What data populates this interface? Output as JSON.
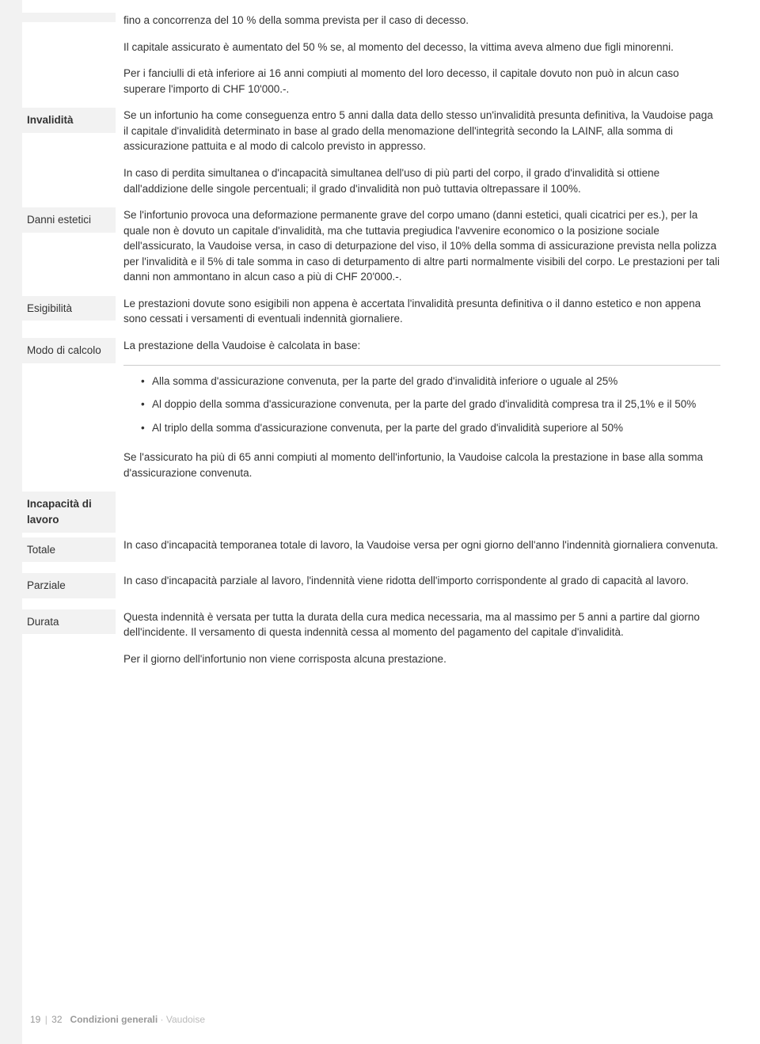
{
  "intro": {
    "p1": "fino a concorrenza del 10 % della somma prevista per il caso di decesso.",
    "p2": "Il capitale assicurato è aumentato del 50 % se, al momento del decesso, la vittima aveva almeno due figli minorenni.",
    "p3": "Per i fanciulli di età inferiore ai 16 anni compiuti al momento del loro decesso, il capitale dovuto non può in alcun caso superare l'importo di CHF 10'000.-."
  },
  "invalidita": {
    "label": "Invalidità",
    "p1": "Se un infortunio ha come conseguenza entro 5 anni dalla data dello stesso un'invalidità presunta definitiva, la Vaudoise paga il capitale d'invalidità determinato in base al grado della menomazione dell'integrità secondo la LAINF, alla somma di assicurazione pattuita e al modo di calcolo previsto in appresso.",
    "p2": "In caso di perdita simultanea o d'incapacità simultanea dell'uso di più parti del corpo, il grado d'invalidità si ottiene dall'addizione delle singole percentuali; il grado d'invalidità non può tuttavia oltrepassare il 100%."
  },
  "danni_estetici": {
    "label": "Danni estetici",
    "p1": "Se l'infortunio provoca una deformazione permanente grave del corpo umano (danni estetici, quali cicatrici per es.), per la quale non è dovuto un capitale d'invalidità, ma che tuttavia pregiudica l'avvenire economico o la posizione sociale dell'assicurato, la Vaudoise versa, in caso di deturpazione del viso, il 10% della somma di assicurazione prevista nella polizza per l'invalidità e il 5% di tale somma in caso di deturpamento di altre parti normalmente visibili del corpo. Le prestazioni per tali danni non ammontano in alcun caso a più di CHF 20'000.-."
  },
  "esigibilita": {
    "label": "Esigibilità",
    "p1": "Le prestazioni dovute sono esigibili non appena è accertata l'invalidità presunta definitiva o il danno estetico e non appena sono cessati i versamenti di eventuali indennità giornaliere."
  },
  "modo_calcolo": {
    "label": "Modo di calcolo",
    "intro": "La prestazione della Vaudoise è calcolata in base:",
    "bullets": [
      "Alla somma d'assicurazione convenuta, per la parte del grado d'invalidità inferiore o uguale al 25%",
      "Al doppio della somma d'assicurazione convenuta, per la parte del grado d'invalidità compresa tra il 25,1% e il 50%",
      "Al triplo della somma d'assicurazione convenuta, per la parte del grado d'invalidità superiore al 50%"
    ],
    "after": "Se l'assicurato ha più di 65 anni compiuti al momento dell'infortunio, la Vaudoise calcola la prestazione in base alla somma d'assicurazione convenuta."
  },
  "incapacita": {
    "label": "Incapacità di lavoro"
  },
  "totale": {
    "label": "Totale",
    "p1": "In caso d'incapacità temporanea totale di lavoro, la Vaudoise versa per ogni giorno dell'anno l'indennità giornaliera convenuta."
  },
  "parziale": {
    "label": "Parziale",
    "p1": "In caso d'incapacità parziale al lavoro, l'indennità viene ridotta dell'importo corrispondente al grado di capacità al lavoro."
  },
  "durata": {
    "label": "Durata",
    "p1": "Questa indennità è versata per tutta la durata della cura medica necessaria, ma al massimo per 5 anni a partire dal giorno dell'incidente. Il versamento di questa indennità cessa al momento del pagamento del capitale d'invalidità.",
    "p2": "Per il giorno dell'infortunio non viene corrisposta alcuna prestazione."
  },
  "footer": {
    "page_current": "19",
    "page_total": "32",
    "doc_main": "Condizioni generali",
    "doc_sub": "Vaudoise"
  }
}
